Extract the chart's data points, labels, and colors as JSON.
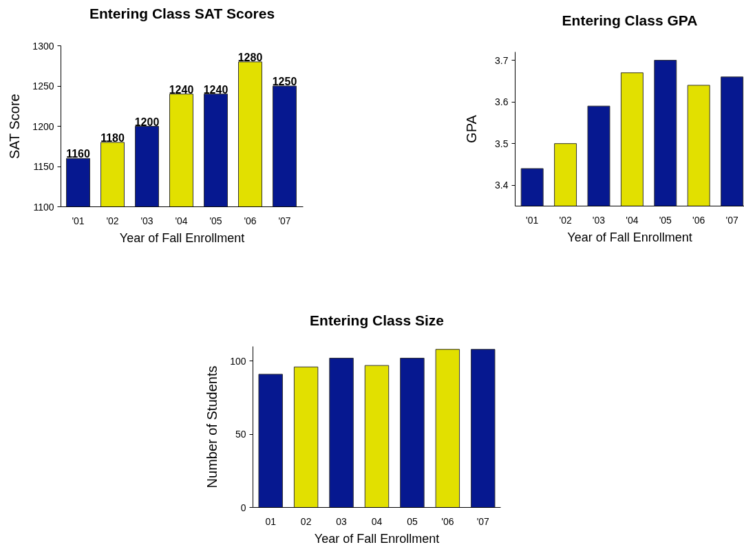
{
  "chart_data": [
    {
      "type": "bar",
      "title": "Entering Class SAT Scores",
      "xlabel": "Year of Fall Enrollment",
      "ylabel": "SAT Score",
      "categories": [
        "'01",
        "'02",
        "'03",
        "'04",
        "'05",
        "'06",
        "'07"
      ],
      "values": [
        1160,
        1180,
        1200,
        1240,
        1240,
        1280,
        1250
      ],
      "colors": [
        "#061890",
        "#e2e000",
        "#061890",
        "#e2e000",
        "#061890",
        "#e2e000",
        "#061890"
      ],
      "ylim": [
        1100,
        1300
      ],
      "yticks": [
        1100,
        1150,
        1200,
        1250,
        1300
      ],
      "data_labels": true
    },
    {
      "type": "bar",
      "title": "Entering Class GPA",
      "xlabel": "Year of Fall Enrollment",
      "ylabel": "GPA",
      "categories": [
        "'01",
        "'02",
        "'03",
        "'04",
        "'05",
        "'06",
        "'07"
      ],
      "values": [
        3.44,
        3.5,
        3.59,
        3.67,
        3.7,
        3.64,
        3.66
      ],
      "colors": [
        "#061890",
        "#e2e000",
        "#061890",
        "#e2e000",
        "#061890",
        "#e2e000",
        "#061890"
      ],
      "ylim": [
        3.35,
        3.72
      ],
      "yticks": [
        3.4,
        3.5,
        3.6,
        3.7
      ]
    },
    {
      "type": "bar",
      "title": "Entering Class Size",
      "xlabel": "Year of Fall Enrollment",
      "ylabel": "Number of Students",
      "categories": [
        "01",
        "02",
        "03",
        "04",
        "05",
        "'06",
        "'07"
      ],
      "values": [
        91,
        96,
        102,
        97,
        102,
        108,
        108
      ],
      "colors": [
        "#061890",
        "#e2e000",
        "#061890",
        "#e2e000",
        "#061890",
        "#e2e000",
        "#061890"
      ],
      "ylim": [
        0,
        110
      ],
      "yticks": [
        0,
        50,
        100
      ]
    }
  ]
}
